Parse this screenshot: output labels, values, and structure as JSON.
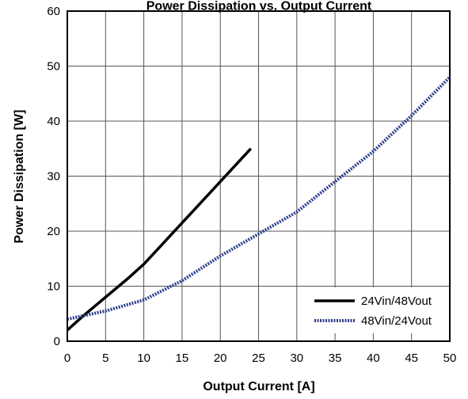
{
  "chart_data": {
    "type": "line",
    "title": "Power Dissipation vs. Output Current",
    "xlabel": "Output Current [A]",
    "ylabel": "Power Dissipation [W]",
    "xlim": [
      0,
      50
    ],
    "ylim": [
      0,
      60
    ],
    "x_ticks": [
      "0",
      "5",
      "10",
      "15",
      "20",
      "25",
      "30",
      "35",
      "40",
      "45",
      "50"
    ],
    "y_ticks": [
      "0",
      "10",
      "20",
      "30",
      "40",
      "50",
      "60"
    ],
    "grid": true,
    "legend_position": "bottom-right",
    "series": [
      {
        "name": "24Vin/48Vout",
        "color": "#000000",
        "style": "solid",
        "points": [
          [
            0,
            2
          ],
          [
            2,
            4.5
          ],
          [
            5,
            8
          ],
          [
            8,
            11.5
          ],
          [
            10,
            14
          ],
          [
            12,
            17
          ],
          [
            15,
            21.5
          ],
          [
            18,
            26
          ],
          [
            20,
            29
          ],
          [
            22,
            32
          ],
          [
            24,
            35
          ]
        ]
      },
      {
        "name": "48Vin/24Vout",
        "color": "#2b3d8c",
        "style": "dotted",
        "points": [
          [
            0,
            4
          ],
          [
            5,
            5.5
          ],
          [
            10,
            7.5
          ],
          [
            15,
            11
          ],
          [
            20,
            15.5
          ],
          [
            25,
            19.5
          ],
          [
            30,
            23.5
          ],
          [
            35,
            29
          ],
          [
            40,
            34.5
          ],
          [
            45,
            41
          ],
          [
            50,
            48
          ]
        ]
      }
    ]
  }
}
